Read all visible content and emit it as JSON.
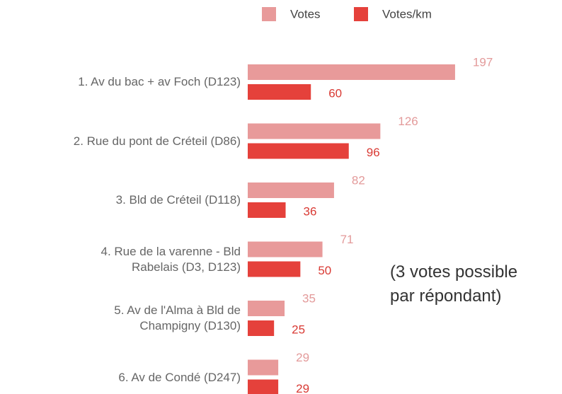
{
  "chart_data": {
    "type": "bar",
    "orientation": "horizontal",
    "categories": [
      "1. Av du bac + av Foch (D123)",
      "2. Rue du pont de Créteil (D86)",
      "3. Bld de Créteil (D118)",
      "4. Rue de la varenne - Bld\nRabelais (D3, D123)",
      "5. Av de l'Alma à Bld de\nChampigny (D130)",
      "6. Av de Condé (D247)"
    ],
    "series": [
      {
        "name": "Votes",
        "color": "#e89a9a",
        "values": [
          197,
          126,
          82,
          71,
          35,
          29
        ]
      },
      {
        "name": "Votes/km",
        "color": "#e5413b",
        "values": [
          60,
          96,
          36,
          50,
          25,
          29
        ]
      }
    ],
    "legend": "top",
    "annotation": "(3 votes possible\npar répondant)"
  }
}
